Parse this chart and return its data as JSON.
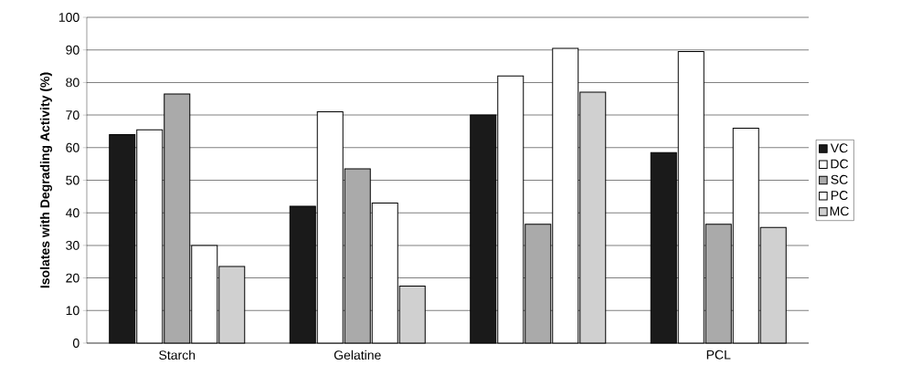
{
  "chart_data": {
    "type": "bar",
    "ylabel": "Isolates with Degrading Activity (%)",
    "categories": [
      "Starch",
      "Gelatine",
      null,
      "PCL"
    ],
    "series": [
      {
        "name": "VC",
        "color": "#1a1a1a",
        "values": [
          64,
          42,
          70,
          58.5
        ]
      },
      {
        "name": "DC",
        "color": "#ffffff",
        "values": [
          65.5,
          71,
          82,
          89.5
        ]
      },
      {
        "name": "SC",
        "color": "#aaaaaa",
        "values": [
          76.5,
          53.5,
          36.5,
          36.5
        ]
      },
      {
        "name": "PC",
        "color": "#ffffff",
        "values": [
          30,
          43,
          90.5,
          66
        ]
      },
      {
        "name": "MC",
        "color": "#d0d0d0",
        "values": [
          23.5,
          17.5,
          77,
          35.5
        ]
      }
    ],
    "ylim": [
      0,
      100
    ],
    "yticks": [
      0,
      10,
      20,
      30,
      40,
      50,
      60,
      70,
      80,
      90,
      100
    ],
    "grid": "y",
    "legend": "right"
  }
}
